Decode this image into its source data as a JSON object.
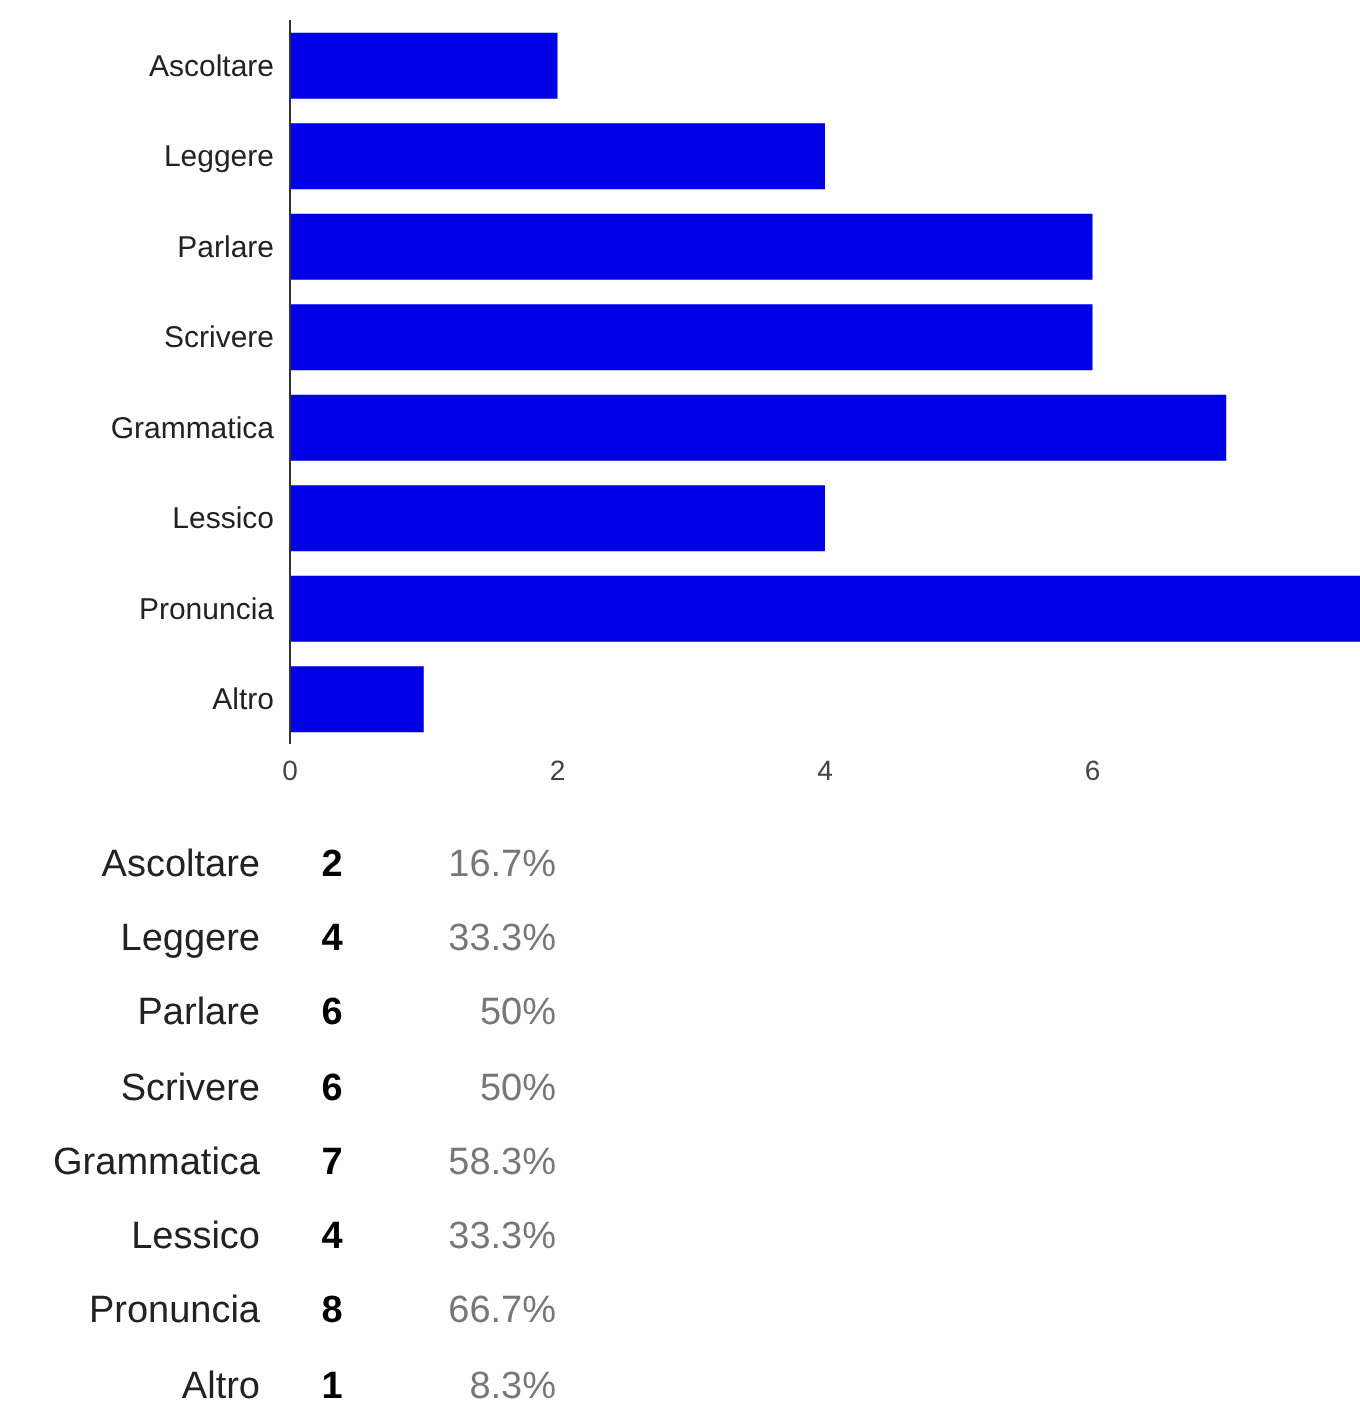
{
  "chart_data": {
    "type": "bar",
    "orientation": "horizontal",
    "categories": [
      "Ascoltare",
      "Leggere",
      "Parlare",
      "Scrivere",
      "Grammatica",
      "Lessico",
      "Pronuncia",
      "Altro"
    ],
    "values": [
      2,
      4,
      6,
      6,
      7,
      4,
      8,
      1
    ],
    "color": "#0000e6",
    "xlim": [
      0,
      8
    ],
    "xticks": [
      0,
      2,
      4,
      6
    ],
    "annotations": [
      "2",
      "16.7%",
      "4",
      "33.3%",
      "6",
      "50%",
      "6",
      "50%",
      "7",
      "58.3%",
      "4",
      "33.3%",
      "8",
      "66.7%",
      "1",
      "8.3%"
    ]
  }
}
